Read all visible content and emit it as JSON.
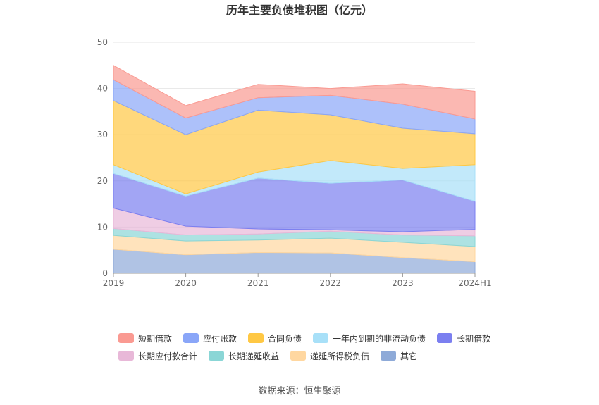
{
  "chart_data": {
    "type": "area",
    "stacked": true,
    "title": "历年主要负债堆积图（亿元）",
    "x": [
      "2019",
      "2020",
      "2021",
      "2022",
      "2023",
      "2024H1"
    ],
    "ylim": [
      0,
      50
    ],
    "yticks": [
      0,
      10,
      20,
      30,
      40,
      50
    ],
    "grid": true,
    "legend_position": "bottom",
    "series": [
      {
        "name": "其它",
        "color": "#8eaad8",
        "values": [
          5.2,
          4.0,
          4.5,
          4.4,
          3.4,
          2.5
        ]
      },
      {
        "name": "递延所得税负债",
        "color": "#ffd7a0",
        "values": [
          3.0,
          3.0,
          2.7,
          3.2,
          3.3,
          3.3
        ]
      },
      {
        "name": "长期递延收益",
        "color": "#8ad6d6",
        "values": [
          1.5,
          1.3,
          1.3,
          1.5,
          1.6,
          2.3
        ]
      },
      {
        "name": "长期应付款合计",
        "color": "#e8b8d8",
        "values": [
          4.4,
          1.9,
          1.1,
          0.3,
          0.7,
          1.4
        ]
      },
      {
        "name": "长期借款",
        "color": "#7b7ff0",
        "values": [
          7.5,
          6.5,
          11.0,
          10.1,
          11.2,
          6.1
        ]
      },
      {
        "name": "一年内到期的非流动负债",
        "color": "#a8e0f8",
        "values": [
          1.9,
          0.5,
          1.3,
          4.9,
          2.5,
          7.9
        ]
      },
      {
        "name": "合同负债",
        "color": "#ffc844",
        "values": [
          13.9,
          12.8,
          13.4,
          9.9,
          8.7,
          6.7
        ]
      },
      {
        "name": "应付账款",
        "color": "#8aa6f8",
        "values": [
          4.5,
          3.6,
          2.7,
          4.2,
          5.2,
          3.2
        ]
      },
      {
        "name": "短期借款",
        "color": "#fa9a92",
        "values": [
          3.1,
          2.7,
          2.9,
          1.5,
          4.4,
          6.0
        ]
      }
    ],
    "legend_order": [
      "短期借款",
      "应付账款",
      "合同负债",
      "一年内到期的非流动负债",
      "长期借款",
      "长期应付款合计",
      "长期递延收益",
      "递延所得税负债",
      "其它"
    ]
  },
  "footer": {
    "source": "数据来源：恒生聚源"
  }
}
